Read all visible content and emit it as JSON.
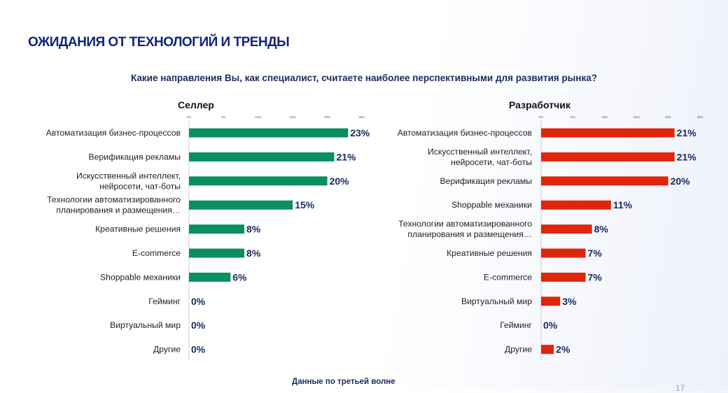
{
  "title": "ОЖИДАНИЯ ОТ ТЕХНОЛОГИЙ И ТРЕНДЫ",
  "question": "Какие направления Вы, как специалист, считаете наиболее перспективными для развития рынка?",
  "footer": "Данные по третьей волне",
  "page_number": "17",
  "chart_data": [
    {
      "type": "bar",
      "orientation": "horizontal",
      "title": "Селлер",
      "color": "#0a8f5f",
      "xlim": [
        0,
        25
      ],
      "ticks": [
        "0%",
        "5%",
        "10%",
        "15%",
        "20%",
        "25%"
      ],
      "categories": [
        [
          "Автоматизация бизнес-процессов"
        ],
        [
          "Верификация рекламы"
        ],
        [
          "Искусственный интеллект,",
          "нейросети, чат-боты"
        ],
        [
          "Технологии автоматизированного",
          "планирования и размещения…"
        ],
        [
          "Креативные решения"
        ],
        [
          "E-commerce"
        ],
        [
          "Shoppable механики"
        ],
        [
          "Гейминг"
        ],
        [
          "Виртуальный мир"
        ],
        [
          "Другие"
        ]
      ],
      "values": [
        23,
        21,
        20,
        15,
        8,
        8,
        6,
        0,
        0,
        0
      ]
    },
    {
      "type": "bar",
      "orientation": "horizontal",
      "title": "Разработчик",
      "color": "#e0260a",
      "xlim": [
        0,
        25
      ],
      "ticks": [
        "0%",
        "5%",
        "10%",
        "15%",
        "20%",
        "25%"
      ],
      "categories": [
        [
          "Автоматизация бизнес-процессов"
        ],
        [
          "Искусственный интеллект,",
          "нейросети, чат-боты"
        ],
        [
          "Верификация рекламы"
        ],
        [
          "Shoppable механики"
        ],
        [
          "Технологии автоматизированного",
          "планирования и размещения…"
        ],
        [
          "Креативные решения"
        ],
        [
          "E-commerce"
        ],
        [
          "Виртуальный мир"
        ],
        [
          "Гейминг"
        ],
        [
          "Другие"
        ]
      ],
      "values": [
        21,
        21,
        20,
        11,
        8,
        7,
        7,
        3,
        0,
        2
      ]
    }
  ]
}
